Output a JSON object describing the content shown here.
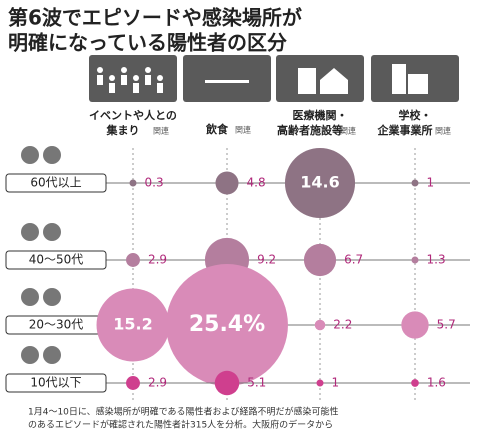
{
  "chart_data": {
    "type": "bubble",
    "title": [
      "第6波でエピソードや感染場所が",
      "明確になっている陽性者の区分"
    ],
    "categories": [
      {
        "lines": [
          "イベントや人との",
          "集まり"
        ],
        "suffix": "関連"
      },
      {
        "lines": [
          "飲食"
        ],
        "suffix": "関連"
      },
      {
        "lines": [
          "医療機関・",
          "高齢者施設等"
        ],
        "suffix": "関連"
      },
      {
        "lines": [
          "学校・",
          "企業事業所"
        ],
        "suffix": "関連"
      }
    ],
    "series": [
      {
        "name": "60代以上",
        "color": "#8e7384",
        "values": [
          0.3,
          4.8,
          14.6,
          1
        ]
      },
      {
        "name": "40～50代",
        "color": "#b47e9e",
        "values": [
          2.9,
          9.2,
          6.7,
          1.3
        ]
      },
      {
        "name": "20～30代",
        "color": "#d98bb8",
        "values": [
          15.2,
          25.4,
          2.2,
          5.7
        ],
        "value_labels": [
          "15.2",
          "25.4%",
          "2.2",
          "5.7"
        ]
      },
      {
        "name": "10代以下",
        "color": "#cf3f8e",
        "values": [
          2.9,
          5.1,
          1,
          1.6
        ]
      }
    ],
    "note": [
      "1月4～10日に、感染場所が明確である陽性者および経路不明だが感染可能性",
      "のあるエピソードが確認された陽性者計315人を分析。大阪府のデータから"
    ]
  }
}
